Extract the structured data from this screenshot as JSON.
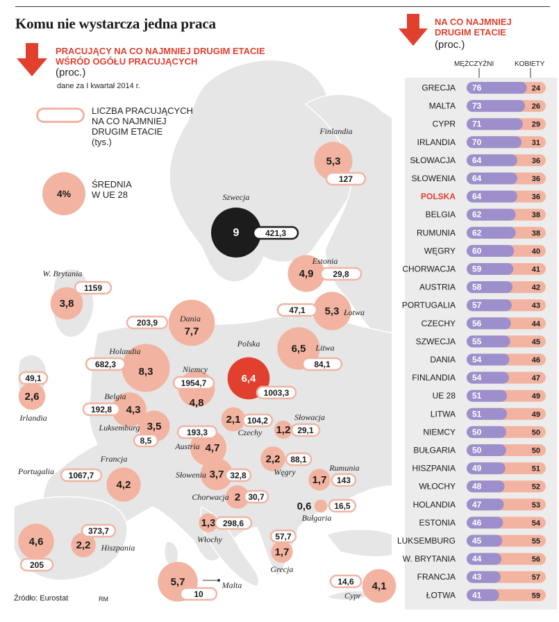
{
  "title": "Komu nie wystarcza jedna praca",
  "map_panel": {
    "heading_line1": "PRACUJĄCY NA CO NAJMNIEJ DRUGIM ETACIE",
    "heading_line2": "WŚRÓD OGÓŁU PRACUJĄCYCH",
    "unit": "(proc.)",
    "date_note": "dane za I kwartał 2014 r.",
    "legend_count_lines": [
      "LICZBA PRACUJĄCYCH",
      "NA CO NAJMNIEJ",
      "DRUGIM ETACIE",
      "(tys.)"
    ],
    "legend_avg_value": "4%",
    "legend_avg_lines": [
      "ŚREDNIA",
      "W UE 28"
    ]
  },
  "bar_panel": {
    "heading_line1": "NA CO NAJMNIEJ",
    "heading_line2": "DRUGIM ETACIE",
    "unit": "(proc.)",
    "col_men": "MĘŻCZYŹNI",
    "col_women": "KOBIETY"
  },
  "source": "Źródło: Eurostat",
  "author": "RM",
  "colors": {
    "accent": "#e1402f",
    "circle": "#f2b4a0",
    "dark": "#1c1c1c",
    "men": "#9c8fcb",
    "women": "#f2b4a0",
    "land": "#e6e6e6"
  },
  "chart_data": [
    {
      "type": "bubble-map",
      "title": "Pracujący na co najmniej drugim etacie wśród ogółu pracujących (proc.)",
      "eu28_average_percent": "4%",
      "countries": [
        {
          "name": "Finlandia",
          "percent": "5,3",
          "thousands": "127"
        },
        {
          "name": "Szwecja",
          "percent": "9",
          "thousands": "421,3"
        },
        {
          "name": "Estonia",
          "percent": "4,9",
          "thousands": "29,8"
        },
        {
          "name": "Łotwa",
          "percent": "5,3",
          "thousands": "47,1"
        },
        {
          "name": "Litwa",
          "percent": "6,5",
          "thousands": "84,1"
        },
        {
          "name": "W. Brytania",
          "percent": "3,8",
          "thousands": "1159"
        },
        {
          "name": "Dania",
          "percent": "7,7",
          "thousands": "203,9"
        },
        {
          "name": "Holandia",
          "percent": "8,3",
          "thousands": "682,3"
        },
        {
          "name": "Niemcy",
          "percent": "4,8",
          "thousands": "1954,7"
        },
        {
          "name": "Polska",
          "percent": "6,4",
          "thousands": "1003,3"
        },
        {
          "name": "Irlandia",
          "percent": "2,6",
          "thousands": "49,1"
        },
        {
          "name": "Belgia",
          "percent": "4,3",
          "thousands": "192,8"
        },
        {
          "name": "Luksemburg",
          "percent": "3,5",
          "thousands": "8,5"
        },
        {
          "name": "Czechy",
          "percent": "2,1",
          "thousands": "104,2"
        },
        {
          "name": "Słowacja",
          "percent": "1,2",
          "thousands": "29,1"
        },
        {
          "name": "Austria",
          "percent": "4,7",
          "thousands": "193,3"
        },
        {
          "name": "Węgry",
          "percent": "2,2",
          "thousands": "88,1"
        },
        {
          "name": "Francja",
          "percent": "4,2",
          "thousands": "1067,7"
        },
        {
          "name": "Słowenia",
          "percent": "3,7",
          "thousands": "32,8"
        },
        {
          "name": "Rumunia",
          "percent": "1,7",
          "thousands": "143"
        },
        {
          "name": "Chorwacja",
          "percent": "2",
          "thousands": "30,7"
        },
        {
          "name": "Bułgaria",
          "percent": "0,6",
          "thousands": "16,5"
        },
        {
          "name": "Portugalia",
          "percent": "4,6",
          "thousands": "205"
        },
        {
          "name": "Hiszpania",
          "percent": "2,2",
          "thousands": "373,7"
        },
        {
          "name": "Włochy",
          "percent": "1,3",
          "thousands": "298,6"
        },
        {
          "name": "Grecja",
          "percent": "1,7",
          "thousands": "57,7"
        },
        {
          "name": "Malta",
          "percent": "5,7",
          "thousands": "10"
        },
        {
          "name": "Cypr",
          "percent": "4,1",
          "thousands": "14,6"
        }
      ]
    },
    {
      "type": "bar",
      "stacked": true,
      "title": "Na co najmniej drugim etacie (proc.)",
      "series": [
        {
          "name": "MĘŻCZYŹNI"
        },
        {
          "name": "KOBIETY"
        }
      ],
      "rows": [
        {
          "country": "GRECJA",
          "men": 76,
          "women": 24
        },
        {
          "country": "MALTA",
          "men": 73,
          "women": 26
        },
        {
          "country": "CYPR",
          "men": 71,
          "women": 29
        },
        {
          "country": "IRLANDIA",
          "men": 70,
          "women": 31
        },
        {
          "country": "SŁOWACJA",
          "men": 64,
          "women": 36
        },
        {
          "country": "SŁOWENIA",
          "men": 64,
          "women": 36
        },
        {
          "country": "POLSKA",
          "men": 64,
          "women": 36,
          "highlight": true
        },
        {
          "country": "BELGIA",
          "men": 62,
          "women": 38
        },
        {
          "country": "RUMUNIA",
          "men": 62,
          "women": 38
        },
        {
          "country": "WĘGRY",
          "men": 60,
          "women": 40
        },
        {
          "country": "CHORWACJA",
          "men": 59,
          "women": 41
        },
        {
          "country": "AUSTRIA",
          "men": 58,
          "women": 42
        },
        {
          "country": "PORTUGALIA",
          "men": 57,
          "women": 43
        },
        {
          "country": "CZECHY",
          "men": 56,
          "women": 44
        },
        {
          "country": "SZWECJA",
          "men": 55,
          "women": 45
        },
        {
          "country": "DANIA",
          "men": 54,
          "women": 46
        },
        {
          "country": "FINLANDIA",
          "men": 54,
          "women": 47
        },
        {
          "country": "UE 28",
          "men": 51,
          "women": 49
        },
        {
          "country": "LITWA",
          "men": 51,
          "women": 49
        },
        {
          "country": "NIEMCY",
          "men": 50,
          "women": 50
        },
        {
          "country": "BUŁGARIA",
          "men": 50,
          "women": 50
        },
        {
          "country": "HISZPANIA",
          "men": 49,
          "women": 51
        },
        {
          "country": "WŁOCHY",
          "men": 48,
          "women": 52
        },
        {
          "country": "HOLANDIA",
          "men": 47,
          "women": 53
        },
        {
          "country": "ESTONIA",
          "men": 46,
          "women": 54
        },
        {
          "country": "LUKSEMBURG",
          "men": 45,
          "women": 55
        },
        {
          "country": "W. BRYTANIA",
          "men": 44,
          "women": 56
        },
        {
          "country": "FRANCJA",
          "men": 43,
          "women": 57
        },
        {
          "country": "ŁOTWA",
          "men": 41,
          "women": 59
        }
      ]
    }
  ]
}
